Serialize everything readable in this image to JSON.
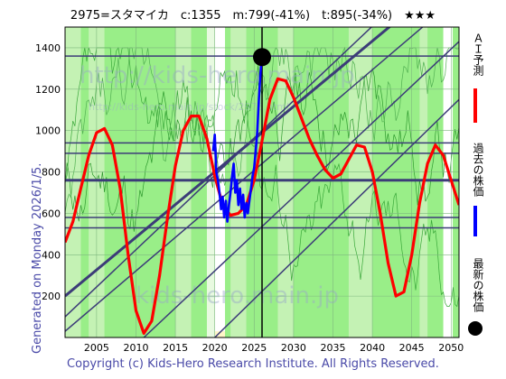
{
  "header": {
    "title": "2975=スタマイカ　c:1355　m:799(-41%)　t:895(-34%)　★★★"
  },
  "side_label": "Generated on Monday 2026/1/5.",
  "footer": "Copyright (c) Kids-Hero Research Institute. All Rights Reserved.",
  "watermarks": [
    "http://kids-hero.main.jp",
    "http://kids-hero.main.jp/stock/2975.html",
    "kids-hero.main.jp"
  ],
  "legend": {
    "forecast": "ＡＩ予測",
    "past": "過去の株価",
    "latest": "最新の株価",
    "colors": {
      "forecast": "#ff0000",
      "past": "#0000ff",
      "latest": "#000000"
    }
  },
  "chart_data": {
    "type": "line",
    "xlim": [
      2001,
      2051
    ],
    "ylim": [
      0,
      1500
    ],
    "x_ticks": [
      2005,
      2010,
      2015,
      2020,
      2025,
      2030,
      2035,
      2040,
      2045,
      2050
    ],
    "y_ticks": [
      200,
      400,
      600,
      800,
      1000,
      1200,
      1400
    ],
    "grid": true,
    "series": [
      {
        "name": "ＡＩ予測",
        "color": "#ff0000",
        "points": [
          [
            2001,
            460
          ],
          [
            2002,
            560
          ],
          [
            2003,
            720
          ],
          [
            2004,
            880
          ],
          [
            2005,
            990
          ],
          [
            2006,
            1010
          ],
          [
            2007,
            930
          ],
          [
            2008,
            720
          ],
          [
            2009,
            400
          ],
          [
            2010,
            130
          ],
          [
            2011,
            20
          ],
          [
            2012,
            80
          ],
          [
            2013,
            300
          ],
          [
            2014,
            580
          ],
          [
            2015,
            830
          ],
          [
            2016,
            1000
          ],
          [
            2017,
            1070
          ],
          [
            2018,
            1070
          ],
          [
            2019,
            960
          ],
          [
            2020,
            780
          ],
          [
            2021,
            640
          ],
          [
            2022,
            590
          ],
          [
            2023,
            600
          ],
          [
            2024,
            640
          ],
          [
            2025,
            760
          ],
          [
            2026,
            950
          ],
          [
            2027,
            1150
          ],
          [
            2028,
            1250
          ],
          [
            2029,
            1240
          ],
          [
            2030,
            1160
          ],
          [
            2031,
            1060
          ],
          [
            2032,
            960
          ],
          [
            2033,
            880
          ],
          [
            2034,
            810
          ],
          [
            2035,
            770
          ],
          [
            2036,
            790
          ],
          [
            2037,
            860
          ],
          [
            2038,
            930
          ],
          [
            2039,
            920
          ],
          [
            2040,
            800
          ],
          [
            2041,
            600
          ],
          [
            2042,
            360
          ],
          [
            2043,
            200
          ],
          [
            2044,
            220
          ],
          [
            2045,
            400
          ],
          [
            2046,
            650
          ],
          [
            2047,
            840
          ],
          [
            2048,
            930
          ],
          [
            2049,
            880
          ],
          [
            2050,
            760
          ],
          [
            2051,
            640
          ]
        ]
      },
      {
        "name": "過去の株価",
        "color": "#0000ff",
        "points": [
          [
            2019.8,
            900
          ],
          [
            2020.0,
            980
          ],
          [
            2020.2,
            800
          ],
          [
            2020.4,
            760
          ],
          [
            2020.6,
            700
          ],
          [
            2020.8,
            620
          ],
          [
            2021.0,
            680
          ],
          [
            2021.2,
            580
          ],
          [
            2021.4,
            660
          ],
          [
            2021.6,
            560
          ],
          [
            2021.8,
            640
          ],
          [
            2022.0,
            700
          ],
          [
            2022.2,
            780
          ],
          [
            2022.4,
            840
          ],
          [
            2022.6,
            700
          ],
          [
            2022.8,
            760
          ],
          [
            2023.0,
            640
          ],
          [
            2023.2,
            720
          ],
          [
            2023.4,
            620
          ],
          [
            2023.6,
            690
          ],
          [
            2023.8,
            580
          ],
          [
            2024.0,
            650
          ],
          [
            2024.2,
            600
          ],
          [
            2024.4,
            660
          ],
          [
            2024.6,
            720
          ],
          [
            2024.8,
            780
          ],
          [
            2025.0,
            820
          ],
          [
            2025.2,
            900
          ],
          [
            2025.4,
            1000
          ],
          [
            2025.6,
            1150
          ],
          [
            2025.8,
            1280
          ],
          [
            2025.95,
            1355
          ]
        ]
      }
    ],
    "latest_point": {
      "x": 2026.0,
      "y": 1355
    },
    "horizontal_lines": [
      1360,
      940,
      890,
      760,
      580,
      530
    ],
    "trend_lines": [
      {
        "from": [
          2001,
          200
        ],
        "to": [
          2051,
          1780
        ]
      },
      {
        "from": [
          2001,
          30
        ],
        "to": [
          2051,
          1650
        ]
      },
      {
        "from": [
          2001,
          100
        ],
        "to": [
          2051,
          1900
        ]
      },
      {
        "from": [
          2011,
          0
        ],
        "to": [
          2051,
          1430
        ]
      },
      {
        "from": [
          2020,
          0
        ],
        "to": [
          2051,
          1150
        ]
      }
    ],
    "vertical_line_x": 2026.0
  }
}
